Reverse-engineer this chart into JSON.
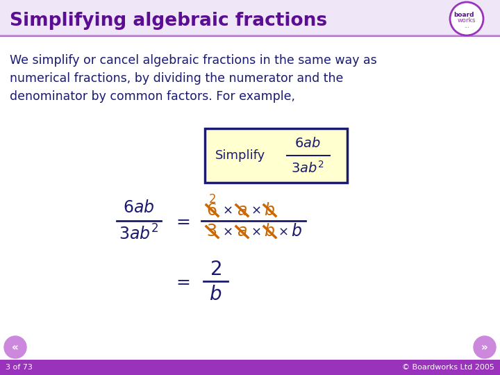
{
  "title": "Simplifying algebraic fractions",
  "title_color": "#5B0E91",
  "header_bg_color": "#EFE6F7",
  "header_line_color": "#B070C8",
  "body_text_lines": [
    "We simplify or cancel algebraic fractions in the same way as",
    "numerical fractions, by dividing the numerator and the",
    "denominator by common factors. For example,"
  ],
  "body_text_color": "#1a1a6e",
  "simplify_box_fill": "#FFFFD0",
  "simplify_box_border": "#1a1a6e",
  "math_color": "#1a1a6e",
  "cancel_color": "#CC6600",
  "footer_bar_color": "#9933BB",
  "footer_text_left": "3 of 73",
  "footer_text_right": "© Boardworks Ltd 2005",
  "footer_text_color": "#FFFFFF",
  "background_color": "#FFFFFF",
  "nav_button_color": "#CC88DD"
}
